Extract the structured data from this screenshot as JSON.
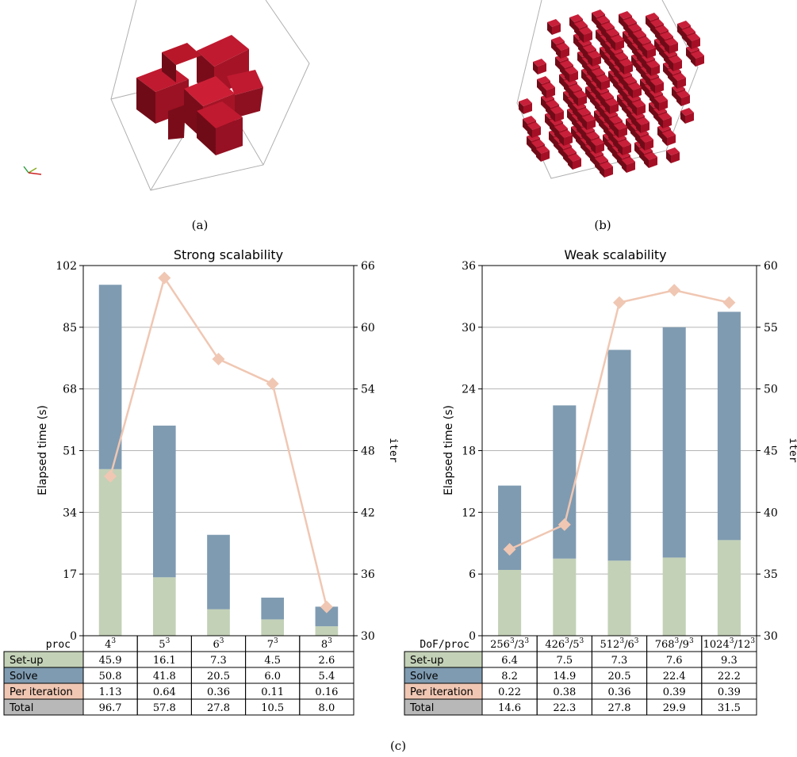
{
  "captions": {
    "a": "(a)",
    "b": "(b)",
    "c": "(c)"
  },
  "illustration": {
    "color": "#a50f25",
    "edge_color": "#b0b0b0"
  },
  "colors": {
    "setup": "#c3d1b7",
    "solve": "#7f9bb1",
    "per_iteration": "#f0c7b3",
    "total": "#b8b8b8",
    "line": "#f0c7b3",
    "grid": "#b4b4b4"
  },
  "chart_data": [
    {
      "type": "bar",
      "title": "Strong scalability",
      "ylabel": "Elapsed time (s)",
      "y2label": "iter",
      "ylim": [
        0,
        102
      ],
      "yticks": [
        0,
        17,
        34,
        51,
        68,
        85,
        102
      ],
      "y2lim": [
        30,
        66
      ],
      "y2ticks": [
        30,
        36,
        42,
        48,
        54,
        60,
        66
      ],
      "stacked": true,
      "grid": true,
      "table_header_label": "proc",
      "categories": [
        {
          "base": "4",
          "exp": "3"
        },
        {
          "base": "5",
          "exp": "3"
        },
        {
          "base": "6",
          "exp": "3"
        },
        {
          "base": "7",
          "exp": "3"
        },
        {
          "base": "8",
          "exp": "3"
        }
      ],
      "series": [
        {
          "name": "Set-up",
          "values": [
            45.9,
            16.1,
            7.3,
            4.5,
            2.6
          ]
        },
        {
          "name": "Solve",
          "values": [
            50.8,
            41.8,
            20.5,
            6.0,
            5.4
          ]
        }
      ],
      "line": {
        "axis": "right",
        "values": [
          45.5,
          64.8,
          56.9,
          54.5,
          32.8
        ]
      },
      "table_rows": [
        {
          "label": "Set-up",
          "color_key": "setup",
          "values": [
            "45.9",
            "16.1",
            "7.3",
            "4.5",
            "2.6"
          ]
        },
        {
          "label": "Solve",
          "color_key": "solve",
          "values": [
            "50.8",
            "41.8",
            "20.5",
            "6.0",
            "5.4"
          ]
        },
        {
          "label": "Per iteration",
          "color_key": "per_iteration",
          "values": [
            "1.13",
            "0.64",
            "0.36",
            "0.11",
            "0.16"
          ]
        },
        {
          "label": "Total",
          "color_key": "total",
          "values": [
            "96.7",
            "57.8",
            "27.8",
            "10.5",
            "8.0"
          ]
        }
      ]
    },
    {
      "type": "bar",
      "title": "Weak scalability",
      "ylabel": "Elapsed time (s)",
      "y2label": "iter",
      "ylim": [
        0,
        36
      ],
      "yticks": [
        0,
        6,
        12,
        18,
        24,
        30,
        36
      ],
      "y2lim": [
        30,
        60
      ],
      "y2ticks": [
        30,
        35,
        40,
        45,
        50,
        55,
        60
      ],
      "stacked": true,
      "grid": true,
      "table_header_label": "DoF/proc",
      "categories": [
        {
          "base": "256",
          "exp": "3",
          "sep": "/",
          "base2": "3",
          "exp2": "3"
        },
        {
          "base": "426",
          "exp": "3",
          "sep": "/",
          "base2": "5",
          "exp2": "3"
        },
        {
          "base": "512",
          "exp": "3",
          "sep": "/",
          "base2": "6",
          "exp2": "3"
        },
        {
          "base": "768",
          "exp": "3",
          "sep": "/",
          "base2": "9",
          "exp2": "3"
        },
        {
          "base": "1024",
          "exp": "3",
          "sep": "/",
          "base2": "12",
          "exp2": "3"
        }
      ],
      "series": [
        {
          "name": "Set-up",
          "values": [
            6.4,
            7.5,
            7.3,
            7.6,
            9.3
          ]
        },
        {
          "name": "Solve",
          "values": [
            8.2,
            14.9,
            20.5,
            22.4,
            22.2
          ]
        }
      ],
      "line": {
        "axis": "right",
        "values": [
          37,
          39,
          57,
          58,
          57
        ]
      },
      "table_rows": [
        {
          "label": "Set-up",
          "color_key": "setup",
          "values": [
            "6.4",
            "7.5",
            "7.3",
            "7.6",
            "9.3"
          ]
        },
        {
          "label": "Solve",
          "color_key": "solve",
          "values": [
            "8.2",
            "14.9",
            "20.5",
            "22.4",
            "22.2"
          ]
        },
        {
          "label": "Per iteration",
          "color_key": "per_iteration",
          "values": [
            "0.22",
            "0.38",
            "0.36",
            "0.39",
            "0.39"
          ]
        },
        {
          "label": "Total",
          "color_key": "total",
          "values": [
            "14.6",
            "22.3",
            "27.8",
            "29.9",
            "31.5"
          ]
        }
      ]
    }
  ]
}
